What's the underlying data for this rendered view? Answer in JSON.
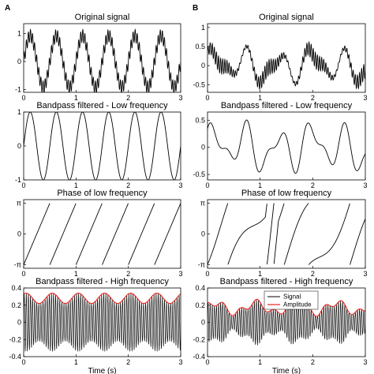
{
  "panel_labels": [
    "A",
    "B"
  ],
  "legend": {
    "signal": "Signal",
    "amplitude": "Amplitude",
    "signal_color": "#000000",
    "amplitude_color": "#e8261e"
  },
  "chart_data": [
    {
      "type": "line",
      "panel": "A",
      "title": "Original signal",
      "x": [
        0,
        3
      ],
      "xlabel": "",
      "xticks": [
        "0",
        "1",
        "2",
        "3"
      ],
      "ylim": [
        -1.1,
        1.35
      ],
      "yticks": [
        {
          "v": -1,
          "t": "-1"
        },
        {
          "v": 0,
          "t": "0"
        },
        {
          "v": 1,
          "t": "1"
        }
      ],
      "series": [
        {
          "signal": "low(f=2)+0.25·high(f=25)"
        }
      ]
    },
    {
      "type": "line",
      "panel": "A",
      "title": "Bandpass filtered - Low frequency",
      "x": [
        0,
        3
      ],
      "xlabel": "",
      "xticks": [
        "0",
        "1",
        "2",
        "3"
      ],
      "ylim": [
        -1,
        1
      ],
      "yticks": [
        {
          "v": -1,
          "t": "-1"
        },
        {
          "v": 0,
          "t": "0"
        },
        {
          "v": 1,
          "t": "1"
        }
      ],
      "series": [
        {
          "signal": "sin, 2 Hz, amplitude 1"
        }
      ]
    },
    {
      "type": "line",
      "panel": "A",
      "title": "Phase of low frequency",
      "x": [
        0,
        3
      ],
      "xlabel": "",
      "xticks": [
        "0",
        "1",
        "2",
        "3"
      ],
      "ylim": [
        -3.5,
        3.5
      ],
      "yticks": [
        {
          "v": -3.14159,
          "t": "-π"
        },
        {
          "v": 0,
          "t": "0"
        },
        {
          "v": 3.14159,
          "t": "π"
        }
      ],
      "series": [
        {
          "signal": "sawtooth -π to π, 2 Hz"
        }
      ]
    },
    {
      "type": "line",
      "panel": "A",
      "title": "Bandpass filtered - High frequency",
      "x": [
        0,
        3
      ],
      "xlabel": "Time (s)",
      "xticks": [
        "0",
        "1",
        "2",
        "3"
      ],
      "ylim": [
        -0.4,
        0.4
      ],
      "yticks": [
        {
          "v": -0.4,
          "t": "-0.4"
        },
        {
          "v": -0.2,
          "t": "-0.2"
        },
        {
          "v": 0,
          "t": "0"
        },
        {
          "v": 0.2,
          "t": "0.2"
        },
        {
          "v": 0.4,
          "t": "0.4"
        }
      ],
      "series": [
        {
          "signal": "25 Hz carrier, envelope 0.2–0.35"
        },
        {
          "signal": "amplitude envelope"
        }
      ]
    },
    {
      "type": "line",
      "panel": "B",
      "title": "Original signal",
      "x": [
        0,
        3
      ],
      "xlabel": "",
      "xticks": [
        "0",
        "1",
        "2",
        "3"
      ],
      "ylim": [
        -0.7,
        1.1
      ],
      "yticks": [
        {
          "v": -0.5,
          "t": "-0.5"
        },
        {
          "v": 0,
          "t": "0"
        },
        {
          "v": 0.5,
          "t": "0.5"
        },
        {
          "v": 1,
          "t": "1"
        }
      ],
      "series": [
        {
          "signal": "irregular low + high"
        }
      ]
    },
    {
      "type": "line",
      "panel": "B",
      "title": "Bandpass filtered - Low frequency",
      "x": [
        0,
        3
      ],
      "xlabel": "",
      "xticks": [
        "0",
        "1",
        "2",
        "3"
      ],
      "ylim": [
        -0.6,
        0.65
      ],
      "yticks": [
        {
          "v": -0.5,
          "t": "-0.5"
        },
        {
          "v": 0,
          "t": "0"
        },
        {
          "v": 0.5,
          "t": "0.5"
        }
      ],
      "series": [
        {
          "signal": "irregular low"
        }
      ]
    },
    {
      "type": "line",
      "panel": "B",
      "title": "Phase of low frequency",
      "x": [
        0,
        3
      ],
      "xlabel": "",
      "xticks": [
        "0",
        "1",
        "2",
        "3"
      ],
      "ylim": [
        -3.5,
        3.5
      ],
      "yticks": [
        {
          "v": -3.14159,
          "t": "-π"
        },
        {
          "v": 0,
          "t": "0"
        },
        {
          "v": 3.14159,
          "t": "π"
        }
      ],
      "series": [
        {
          "signal": "irregular sawtooth"
        }
      ]
    },
    {
      "type": "line",
      "panel": "B",
      "title": "Bandpass filtered - High frequency",
      "x": [
        0,
        3
      ],
      "xlabel": "Time (s)",
      "xticks": [
        "0",
        "1",
        "2",
        "3"
      ],
      "ylim": [
        -0.4,
        0.4
      ],
      "yticks": [
        {
          "v": -0.4,
          "t": "-0.4"
        },
        {
          "v": -0.2,
          "t": "-0.2"
        },
        {
          "v": 0,
          "t": "0"
        },
        {
          "v": 0.2,
          "t": "0.2"
        },
        {
          "v": 0.4,
          "t": "0.4"
        }
      ],
      "series": [
        {
          "name": "Signal",
          "signal": "25 Hz carrier, irregular envelope"
        },
        {
          "name": "Amplitude",
          "signal": "amplitude envelope"
        }
      ]
    }
  ]
}
